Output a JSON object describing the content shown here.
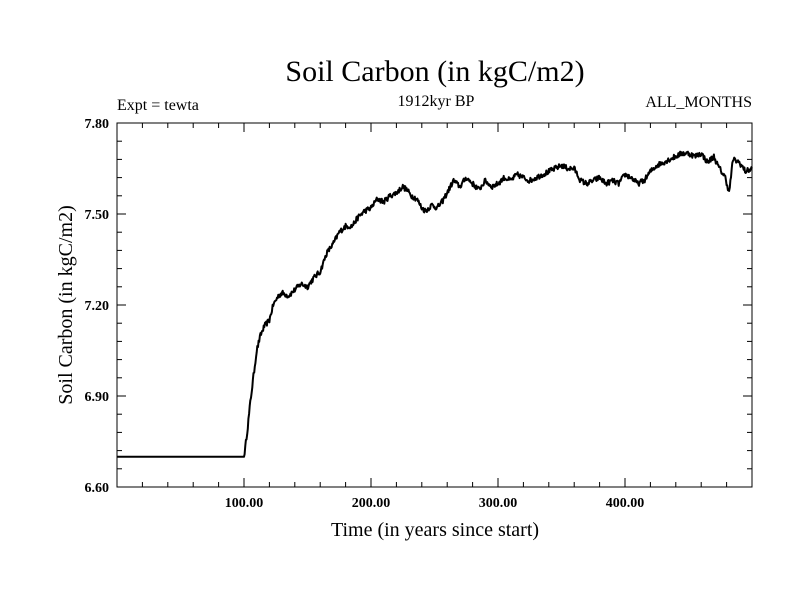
{
  "chart_data": {
    "type": "line",
    "title": "Soil Carbon (in kgC/m2)",
    "subtitle_left": "Expt = tewta",
    "subtitle_center": "1912kyr BP",
    "subtitle_right": "ALL_MONTHS",
    "xlabel": "Time (in years since start)",
    "ylabel": "Soil Carbon (in kgC/m2)",
    "xlim": [
      0,
      500
    ],
    "ylim": [
      6.6,
      7.8
    ],
    "x_ticks_labeled": [
      {
        "value": 100,
        "label": "100.00"
      },
      {
        "value": 200,
        "label": "200.00"
      },
      {
        "value": 300,
        "label": "300.00"
      },
      {
        "value": 400,
        "label": "400.00"
      }
    ],
    "y_ticks_labeled": [
      {
        "value": 6.6,
        "label": "6.60"
      },
      {
        "value": 6.9,
        "label": "6.90"
      },
      {
        "value": 7.2,
        "label": "7.20"
      },
      {
        "value": 7.5,
        "label": "7.50"
      },
      {
        "value": 7.8,
        "label": "7.80"
      }
    ],
    "grid": false,
    "series": [
      {
        "name": "Soil Carbon",
        "color": "#000000",
        "x": [
          0,
          100,
          101,
          103,
          105,
          107,
          110,
          113,
          116,
          120,
          123,
          127,
          130,
          135,
          140,
          145,
          150,
          155,
          160,
          165,
          170,
          175,
          180,
          185,
          190,
          195,
          200,
          205,
          210,
          215,
          220,
          225,
          228,
          232,
          236,
          240,
          243,
          248,
          252,
          256,
          260,
          265,
          270,
          275,
          280,
          285,
          290,
          295,
          300,
          305,
          310,
          315,
          320,
          325,
          330,
          335,
          340,
          345,
          350,
          355,
          360,
          365,
          370,
          375,
          380,
          385,
          390,
          395,
          400,
          405,
          410,
          415,
          420,
          425,
          430,
          435,
          440,
          445,
          450,
          455,
          460,
          465,
          470,
          473,
          476,
          479,
          482,
          485,
          490,
          495,
          500
        ],
        "values": [
          6.7,
          6.7,
          6.73,
          6.8,
          6.88,
          6.95,
          7.05,
          7.1,
          7.13,
          7.15,
          7.2,
          7.23,
          7.24,
          7.23,
          7.25,
          7.27,
          7.26,
          7.29,
          7.31,
          7.37,
          7.4,
          7.44,
          7.46,
          7.46,
          7.49,
          7.51,
          7.52,
          7.55,
          7.54,
          7.56,
          7.57,
          7.59,
          7.58,
          7.56,
          7.55,
          7.52,
          7.51,
          7.53,
          7.52,
          7.54,
          7.57,
          7.61,
          7.59,
          7.62,
          7.6,
          7.58,
          7.61,
          7.59,
          7.6,
          7.62,
          7.61,
          7.63,
          7.62,
          7.61,
          7.62,
          7.63,
          7.64,
          7.65,
          7.66,
          7.65,
          7.65,
          7.61,
          7.6,
          7.61,
          7.62,
          7.6,
          7.61,
          7.6,
          7.63,
          7.62,
          7.6,
          7.61,
          7.64,
          7.66,
          7.67,
          7.68,
          7.69,
          7.7,
          7.7,
          7.69,
          7.7,
          7.67,
          7.69,
          7.66,
          7.64,
          7.62,
          7.57,
          7.68,
          7.67,
          7.64,
          7.65
        ]
      }
    ]
  }
}
